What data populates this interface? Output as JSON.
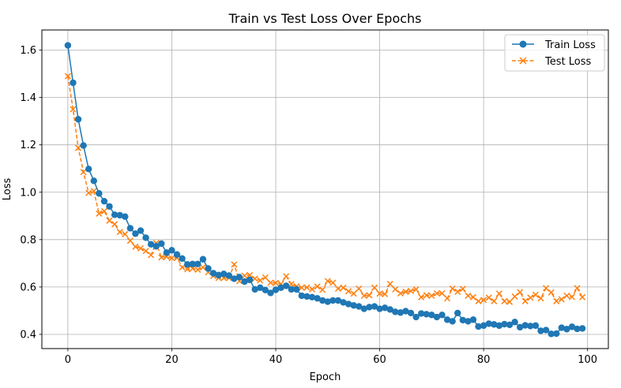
{
  "chart_data": {
    "type": "line",
    "title": "Train vs Test Loss Over Epochs",
    "xlabel": "Epoch",
    "ylabel": "Loss",
    "xlim": [
      -5,
      104
    ],
    "ylim": [
      0.34,
      1.685
    ],
    "xticks": [
      0,
      20,
      40,
      60,
      80,
      100
    ],
    "yticks": [
      0.4,
      0.6,
      0.8,
      1.0,
      1.2,
      1.4,
      1.6
    ],
    "xtick_labels": [
      "0",
      "20",
      "40",
      "60",
      "80",
      "100"
    ],
    "ytick_labels": [
      "0.4",
      "0.6",
      "0.8",
      "1.0",
      "1.2",
      "1.4",
      "1.6"
    ],
    "grid": true,
    "legend_position": "top-right",
    "x": [
      0,
      1,
      2,
      3,
      4,
      5,
      6,
      7,
      8,
      9,
      10,
      11,
      12,
      13,
      14,
      15,
      16,
      17,
      18,
      19,
      20,
      21,
      22,
      23,
      24,
      25,
      26,
      27,
      28,
      29,
      30,
      31,
      32,
      33,
      34,
      35,
      36,
      37,
      38,
      39,
      40,
      41,
      42,
      43,
      44,
      45,
      46,
      47,
      48,
      49,
      50,
      51,
      52,
      53,
      54,
      55,
      56,
      57,
      58,
      59,
      60,
      61,
      62,
      63,
      64,
      65,
      66,
      67,
      68,
      69,
      70,
      71,
      72,
      73,
      74,
      75,
      76,
      77,
      78,
      79,
      80,
      81,
      82,
      83,
      84,
      85,
      86,
      87,
      88,
      89,
      90,
      91,
      92,
      93,
      94,
      95,
      96,
      97,
      98,
      99
    ],
    "series": [
      {
        "name": "Train Loss",
        "color": "#1f77b4",
        "marker": "circle",
        "linestyle": "solid",
        "values": [
          1.62,
          1.462,
          1.308,
          1.197,
          1.098,
          1.048,
          0.995,
          0.962,
          0.94,
          0.905,
          0.903,
          0.897,
          0.848,
          0.825,
          0.838,
          0.808,
          0.78,
          0.772,
          0.783,
          0.745,
          0.755,
          0.737,
          0.72,
          0.695,
          0.697,
          0.697,
          0.717,
          0.678,
          0.658,
          0.65,
          0.655,
          0.648,
          0.635,
          0.642,
          0.623,
          0.63,
          0.59,
          0.597,
          0.587,
          0.575,
          0.588,
          0.597,
          0.605,
          0.59,
          0.59,
          0.563,
          0.56,
          0.557,
          0.552,
          0.543,
          0.538,
          0.543,
          0.543,
          0.535,
          0.528,
          0.522,
          0.518,
          0.508,
          0.515,
          0.518,
          0.508,
          0.512,
          0.505,
          0.495,
          0.492,
          0.498,
          0.49,
          0.473,
          0.488,
          0.485,
          0.482,
          0.473,
          0.482,
          0.462,
          0.455,
          0.49,
          0.46,
          0.455,
          0.462,
          0.433,
          0.437,
          0.445,
          0.442,
          0.437,
          0.443,
          0.44,
          0.452,
          0.43,
          0.438,
          0.435,
          0.437,
          0.415,
          0.418,
          0.402,
          0.403,
          0.428,
          0.422,
          0.432,
          0.423,
          0.425
        ]
      },
      {
        "name": "Test Loss",
        "color": "#ff7f0e",
        "marker": "x",
        "linestyle": "dashed",
        "values": [
          1.49,
          1.35,
          1.187,
          1.085,
          0.997,
          1.005,
          0.91,
          0.92,
          0.88,
          0.865,
          0.832,
          0.823,
          0.795,
          0.77,
          0.763,
          0.752,
          0.735,
          0.785,
          0.725,
          0.728,
          0.722,
          0.723,
          0.683,
          0.675,
          0.678,
          0.673,
          0.683,
          0.662,
          0.647,
          0.638,
          0.638,
          0.638,
          0.695,
          0.625,
          0.648,
          0.65,
          0.635,
          0.628,
          0.64,
          0.618,
          0.617,
          0.613,
          0.645,
          0.612,
          0.603,
          0.597,
          0.598,
          0.59,
          0.602,
          0.588,
          0.625,
          0.618,
          0.593,
          0.597,
          0.582,
          0.572,
          0.593,
          0.563,
          0.565,
          0.597,
          0.572,
          0.57,
          0.613,
          0.59,
          0.573,
          0.58,
          0.583,
          0.59,
          0.557,
          0.565,
          0.563,
          0.573,
          0.573,
          0.552,
          0.593,
          0.58,
          0.592,
          0.563,
          0.557,
          0.54,
          0.545,
          0.555,
          0.54,
          0.572,
          0.54,
          0.537,
          0.56,
          0.578,
          0.54,
          0.555,
          0.567,
          0.552,
          0.595,
          0.577,
          0.54,
          0.548,
          0.563,
          0.558,
          0.595,
          0.557
        ]
      }
    ]
  }
}
